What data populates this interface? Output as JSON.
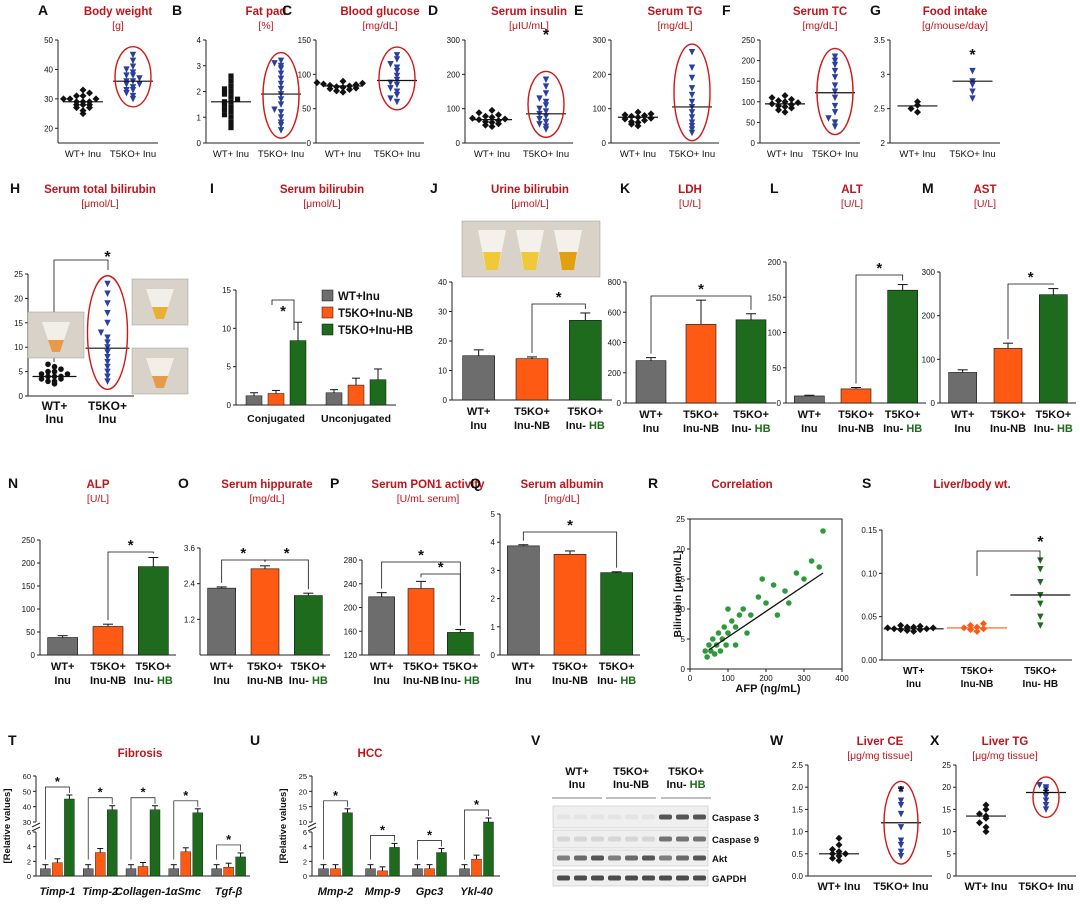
{
  "colors": {
    "title": "#c0141b",
    "gray": "#6d6d6d",
    "orange": "#ff5a14",
    "green": "#1e6b1e",
    "blue": "#2a3f9f",
    "marker": "#1a1a1a",
    "ring": "#d01818",
    "photo": "#d8d2c8",
    "tube": "#e0b860"
  },
  "chart_data": [
    {
      "id": "A",
      "type": "scatter",
      "title": "Body weight",
      "unit": "[g]",
      "ylim": [
        15,
        50
      ],
      "yticks": [
        20,
        30,
        40,
        50
      ],
      "categories": [
        "WT+ Inu",
        "T5KO+ Inu"
      ],
      "groups": [
        {
          "values": [
            25,
            26,
            27,
            27,
            28,
            28,
            28,
            29,
            29,
            29,
            30,
            30,
            30,
            31,
            31,
            32,
            33
          ],
          "mean": 29
        },
        {
          "values": [
            30,
            31,
            32,
            33,
            33,
            34,
            35,
            35,
            36,
            36,
            37,
            38,
            38,
            39,
            40,
            41,
            43,
            45
          ],
          "mean": 36
        }
      ],
      "star": false,
      "ring": 1
    },
    {
      "id": "B",
      "type": "scatter",
      "title": "Fat pad",
      "unit": "[%]",
      "ylim": [
        0,
        4
      ],
      "yticks": [
        0,
        1,
        2,
        3,
        4
      ],
      "categories": [
        "WT+ Inu",
        "T5KO+ Inu"
      ],
      "groups": [
        {
          "values": [
            0.6,
            0.8,
            1.0,
            1.1,
            1.2,
            1.3,
            1.4,
            1.5,
            1.6,
            1.6,
            1.7,
            1.8,
            1.9,
            2.0,
            2.1,
            2.2,
            2.4,
            2.6
          ],
          "mean": 1.6
        },
        {
          "values": [
            0.5,
            0.7,
            0.8,
            1.0,
            1.2,
            1.3,
            1.5,
            1.7,
            1.9,
            2.1,
            2.3,
            2.5,
            2.7,
            2.9,
            3.0,
            3.1,
            3.2
          ],
          "mean": 1.9
        }
      ],
      "star": false,
      "ring": 1
    },
    {
      "id": "C",
      "type": "scatter",
      "title": "Blood glucose",
      "unit": "[mg/dL]",
      "ylim": [
        0,
        150
      ],
      "yticks": [
        0,
        50,
        100,
        150
      ],
      "categories": [
        "WT+ Inu",
        "T5KO+ Inu"
      ],
      "groups": [
        {
          "values": [
            74,
            76,
            78,
            79,
            80,
            81,
            82,
            83,
            84,
            85,
            86,
            87,
            88,
            90
          ],
          "mean": 83
        },
        {
          "values": [
            60,
            65,
            70,
            75,
            80,
            85,
            88,
            92,
            98,
            105,
            110,
            115,
            122,
            128
          ],
          "mean": 91
        }
      ],
      "star": false,
      "ring": 1
    },
    {
      "id": "D",
      "type": "scatter",
      "title": "Serum insulin",
      "unit": "[μIU/mL]",
      "ylim": [
        0,
        300
      ],
      "yticks": [
        0,
        100,
        200,
        300
      ],
      "categories": [
        "WT+ Inu",
        "T5KO+ Inu"
      ],
      "groups": [
        {
          "values": [
            48,
            52,
            56,
            60,
            62,
            65,
            68,
            70,
            72,
            75,
            78,
            82,
            88,
            95
          ],
          "mean": 68
        },
        {
          "values": [
            40,
            48,
            55,
            62,
            70,
            78,
            85,
            92,
            100,
            110,
            120,
            130,
            145,
            165,
            185
          ],
          "mean": 85
        }
      ],
      "star": true,
      "ring": 1
    },
    {
      "id": "E",
      "type": "scatter",
      "title": "Serum TG",
      "unit": "[mg/dL]",
      "ylim": [
        0,
        300
      ],
      "yticks": [
        0,
        100,
        200,
        300
      ],
      "categories": [
        "WT+ Inu",
        "T5KO+ Inu"
      ],
      "groups": [
        {
          "values": [
            50,
            55,
            60,
            62,
            66,
            70,
            72,
            75,
            78,
            80,
            82,
            85,
            90
          ],
          "mean": 75
        },
        {
          "values": [
            30,
            40,
            50,
            60,
            75,
            90,
            105,
            120,
            140,
            160,
            190,
            220,
            265
          ],
          "mean": 105
        }
      ],
      "star": false,
      "ring": 1
    },
    {
      "id": "F",
      "type": "scatter",
      "title": "Serum TC",
      "unit": "[mg/dL]",
      "ylim": [
        0,
        250
      ],
      "yticks": [
        0,
        50,
        100,
        150,
        200,
        250
      ],
      "categories": [
        "WT+ Inu",
        "T5KO+ Inu"
      ],
      "groups": [
        {
          "values": [
            75,
            80,
            85,
            88,
            90,
            93,
            95,
            98,
            100,
            103,
            106,
            110,
            115
          ],
          "mean": 95
        },
        {
          "values": [
            40,
            50,
            60,
            75,
            90,
            110,
            125,
            140,
            160,
            175,
            190,
            200,
            210
          ],
          "mean": 122
        }
      ],
      "star": false,
      "ring": 1
    },
    {
      "id": "G",
      "type": "scatter",
      "title": "Food intake",
      "unit": "[g/mouse/day]",
      "ylim": [
        2.0,
        3.5
      ],
      "yticks": [
        2.0,
        2.5,
        3.0,
        3.5
      ],
      "categories": [
        "WT+ Inu",
        "T5KO+ Inu"
      ],
      "groups": [
        {
          "values": [
            2.45,
            2.5,
            2.55,
            2.6
          ],
          "mean": 2.54
        },
        {
          "values": [
            2.65,
            2.75,
            2.85,
            2.9,
            3.05
          ],
          "mean": 2.9
        }
      ],
      "star": true,
      "ring": -1
    },
    {
      "id": "H",
      "type": "scatter",
      "title": "Serum total bilirubin",
      "unit": "[μmol/L]",
      "ylim": [
        0,
        25
      ],
      "yticks": [
        0,
        5,
        10,
        15,
        20,
        25
      ],
      "categories": [
        "WT+\nInu",
        "T5KO+\nInu"
      ],
      "groups": [
        {
          "values": [
            2.5,
            3,
            3,
            3.5,
            3.5,
            4,
            4,
            4,
            4.5,
            4.5,
            5,
            5,
            5.5,
            6,
            6.5
          ],
          "mean": 4
        },
        {
          "values": [
            3,
            4,
            5,
            6,
            7,
            8,
            9,
            10,
            11,
            12,
            13,
            15,
            17,
            19,
            21,
            23
          ],
          "mean": 9.8
        }
      ],
      "star": true,
      "ring": 1
    },
    {
      "id": "I",
      "type": "bar",
      "title": "Serum bilirubin",
      "unit": "[μmol/L]",
      "ylim": [
        0,
        15
      ],
      "yticks": [
        0,
        5,
        10,
        15
      ],
      "categories": [
        "Conjugated",
        "Unconjugated"
      ],
      "series": [
        {
          "name": "WT+Inu",
          "values": [
            1.2,
            1.6
          ],
          "errors": [
            0.4,
            0.4
          ]
        },
        {
          "name": "T5KO+Inu-NB",
          "values": [
            1.5,
            2.6
          ],
          "errors": [
            0.4,
            0.9
          ]
        },
        {
          "name": "T5KO+Inu-HB",
          "values": [
            8.4,
            3.3
          ],
          "errors": [
            2.4,
            1.4
          ]
        }
      ],
      "legend": [
        "WT+Inu",
        "T5KO+Inu-NB",
        "T5KO+Inu-HB"
      ]
    },
    {
      "id": "J",
      "type": "bar",
      "title": "Urine  bilirubin",
      "unit": "[μmol/L]",
      "ylim": [
        0,
        40
      ],
      "yticks": [
        0,
        10,
        20,
        30,
        40
      ],
      "categories": [
        "WT+\nInu",
        "T5KO+\nInu-NB",
        "T5KO+\nInu- HB"
      ],
      "values": [
        15,
        14,
        27
      ],
      "errors": [
        2,
        0.6,
        2.5
      ]
    },
    {
      "id": "K",
      "type": "bar",
      "title": "LDH",
      "unit": "[U/L]",
      "ylim": [
        0,
        800
      ],
      "yticks": [
        0,
        200,
        400,
        600,
        800
      ],
      "categories": [
        "WT+\nInu",
        "T5KO+\nInu-NB",
        "T5KO+\nInu- HB"
      ],
      "values": [
        280,
        520,
        550
      ],
      "errors": [
        20,
        160,
        40
      ]
    },
    {
      "id": "L",
      "type": "bar",
      "title": "ALT",
      "unit": "[U/L]",
      "ylim": [
        0,
        200
      ],
      "yticks": [
        0,
        50,
        100,
        150,
        200
      ],
      "categories": [
        "WT+\nInu",
        "T5KO+\nInu-NB",
        "T5KO+\nInu- HB"
      ],
      "values": [
        10,
        20,
        160
      ],
      "errors": [
        1,
        2,
        8
      ]
    },
    {
      "id": "M",
      "type": "bar",
      "title": "AST",
      "unit": "[U/L]",
      "ylim": [
        0,
        300
      ],
      "yticks": [
        0,
        100,
        200,
        300
      ],
      "categories": [
        "WT+\nInu",
        "T5KO+\nInu-NB",
        "T5KO+\nInu- HB"
      ],
      "values": [
        70,
        125,
        248
      ],
      "errors": [
        6,
        12,
        14
      ]
    },
    {
      "id": "N",
      "type": "bar",
      "title": "ALP",
      "unit": "[U/L]",
      "ylim": [
        0,
        250
      ],
      "yticks": [
        0,
        50,
        100,
        150,
        200,
        250
      ],
      "categories": [
        "WT+\nInu",
        "T5KO+\nInu-NB",
        "T5KO+\nInu- HB"
      ],
      "values": [
        38,
        62,
        192
      ],
      "errors": [
        4,
        5,
        20
      ]
    },
    {
      "id": "O",
      "type": "bar",
      "title": "Serum hippurate",
      "unit": "[mg/dL]",
      "ylim": [
        0,
        3.6
      ],
      "yticks": [
        1.2,
        2.4,
        3.6
      ],
      "categories": [
        "WT+\nInu",
        "T5KO+\nInu-NB",
        "T5KO+\nInu- HB"
      ],
      "values": [
        2.25,
        2.9,
        2.0
      ],
      "errors": [
        0.04,
        0.1,
        0.08
      ]
    },
    {
      "id": "P",
      "type": "bar",
      "title": "Serum PON1 activity",
      "unit": "[U/mL serum]",
      "ylim": [
        120,
        280
      ],
      "yticks": [
        120,
        160,
        200,
        240,
        280
      ],
      "categories": [
        "WT+\nInu",
        "T5KO+\nInu-NB",
        "T5KO+\nInu- HB"
      ],
      "values": [
        218,
        232,
        158
      ],
      "errors": [
        7,
        12,
        5
      ]
    },
    {
      "id": "Q",
      "type": "bar",
      "title": "Serum albumin",
      "unit": "[mg/dL]",
      "ylim": [
        0,
        5
      ],
      "yticks": [
        0,
        1,
        2,
        3,
        4,
        5
      ],
      "categories": [
        "WT+\nInu",
        "T5KO+\nInu-NB",
        "T5KO+\nInu- HB"
      ],
      "values": [
        3.87,
        3.57,
        2.92
      ],
      "errors": [
        0.04,
        0.12,
        0.03
      ]
    },
    {
      "id": "R",
      "type": "scatter",
      "title": "Correlation",
      "xlabel": "AFP (ng/mL)",
      "ylabel": "Bilirubin [μmol/L]",
      "xlim": [
        0,
        400
      ],
      "ylim": [
        0,
        25
      ],
      "xticks": [
        0,
        100,
        200,
        300,
        400
      ],
      "yticks": [
        0,
        5,
        10,
        15,
        20,
        25
      ],
      "points": [
        [
          40,
          3
        ],
        [
          45,
          2
        ],
        [
          50,
          4
        ],
        [
          55,
          3
        ],
        [
          60,
          5
        ],
        [
          65,
          2.5
        ],
        [
          70,
          4
        ],
        [
          75,
          6
        ],
        [
          80,
          3
        ],
        [
          85,
          5
        ],
        [
          90,
          7
        ],
        [
          95,
          4
        ],
        [
          100,
          6
        ],
        [
          110,
          8
        ],
        [
          120,
          7
        ],
        [
          130,
          9
        ],
        [
          140,
          10
        ],
        [
          160,
          9
        ],
        [
          180,
          12
        ],
        [
          200,
          11
        ],
        [
          220,
          14
        ],
        [
          250,
          13
        ],
        [
          280,
          16
        ],
        [
          300,
          15
        ],
        [
          320,
          18
        ],
        [
          350,
          23
        ],
        [
          340,
          17
        ],
        [
          230,
          9
        ],
        [
          150,
          6
        ],
        [
          260,
          11
        ],
        [
          190,
          15
        ],
        [
          120,
          4
        ],
        [
          100,
          10
        ]
      ],
      "fit": [
        [
          50,
          3.2
        ],
        [
          350,
          16
        ]
      ]
    },
    {
      "id": "S",
      "type": "scatter",
      "title": "Liver/body wt.",
      "ylim": [
        0,
        0.15
      ],
      "yticks": [
        0,
        0.05,
        0.1,
        0.15
      ],
      "ytick_labels": [
        "0.00",
        "0.05",
        "0.10",
        "0.15"
      ],
      "categories": [
        "WT+\nInu",
        "T5KO+\nInu-NB",
        "T5KO+\nInu- HB"
      ],
      "groups": [
        {
          "values": [
            0.033,
            0.034,
            0.035,
            0.035,
            0.036,
            0.036,
            0.037,
            0.037,
            0.038,
            0.038,
            0.039,
            0.04
          ],
          "mean": 0.036
        },
        {
          "values": [
            0.033,
            0.035,
            0.036,
            0.037,
            0.038,
            0.04,
            0.042
          ],
          "mean": 0.037
        },
        {
          "values": [
            0.04,
            0.05,
            0.065,
            0.075,
            0.09,
            0.105,
            0.115
          ],
          "mean": 0.075
        }
      ],
      "star": true,
      "ring": -1
    },
    {
      "id": "T",
      "type": "bar",
      "title": "Fibrosis",
      "ylabel": "[Relative values]",
      "yticks_lower": [
        "0",
        "2",
        "4",
        "6"
      ],
      "yticks_upper": [
        "30",
        "40",
        "50",
        "60"
      ],
      "categories": [
        "Timp-1",
        "Timp-2",
        "Collagen-1",
        "αSmc",
        "Tgf-β"
      ],
      "series": [
        {
          "name": "WT+Inu",
          "values": [
            1,
            1,
            1,
            1,
            1
          ]
        },
        {
          "name": "T5KO+Inu-NB",
          "values": [
            1.8,
            3.2,
            1.3,
            3.3,
            1.2
          ]
        },
        {
          "name": "T5KO+Inu-HB",
          "values": [
            45,
            38,
            38,
            36,
            2.6
          ]
        }
      ]
    },
    {
      "id": "U",
      "type": "bar",
      "title": "HCC",
      "ylabel": "[Relative values]",
      "yticks_lower": [
        "0",
        "2",
        "4",
        "6"
      ],
      "yticks_upper": [
        "10",
        "15",
        "20",
        "25"
      ],
      "categories": [
        "Mmp-2",
        "Mmp-9",
        "Gpc3",
        "Ykl-40"
      ],
      "series": [
        {
          "name": "WT+Inu",
          "values": [
            1,
            1,
            1,
            1
          ]
        },
        {
          "name": "T5KO+Inu-NB",
          "values": [
            1,
            0.7,
            1,
            2.3
          ]
        },
        {
          "name": "T5KO+Inu-HB",
          "values": [
            13,
            3.9,
            3.2,
            10
          ]
        }
      ]
    },
    {
      "id": "W",
      "type": "scatter",
      "title": "Liver CE",
      "unit": "[μg/mg tissue]",
      "ylim": [
        0,
        2.5
      ],
      "yticks": [
        0.0,
        0.5,
        1.0,
        1.5,
        2.0,
        2.5
      ],
      "ytick_labels": [
        "0.0",
        "0.5",
        "1.0",
        "1.5",
        "2.0",
        "2.5"
      ],
      "categories": [
        "WT+ Inu",
        "T5KO+ Inu"
      ],
      "groups": [
        {
          "values": [
            0.35,
            0.4,
            0.45,
            0.5,
            0.5,
            0.55,
            0.6,
            0.7,
            0.85
          ],
          "mean": 0.5
        },
        {
          "values": [
            0.45,
            0.55,
            0.7,
            0.8,
            1.1,
            1.4,
            1.6,
            1.7,
            1.95
          ],
          "mean": 1.2
        }
      ],
      "star": true,
      "ring": 1
    },
    {
      "id": "X",
      "type": "scatter",
      "title": "Liver TG",
      "unit": "[μg/mg tissue]",
      "ylim": [
        0,
        25
      ],
      "yticks": [
        0,
        5,
        10,
        15,
        20,
        25
      ],
      "categories": [
        "WT+ Inu",
        "T5KO+ Inu"
      ],
      "groups": [
        {
          "values": [
            10,
            11,
            12,
            13,
            13.5,
            14,
            15,
            16
          ],
          "mean": 13.5
        },
        {
          "values": [
            15,
            16,
            17,
            18,
            19.5,
            20,
            20.5
          ],
          "mean": 18.8
        }
      ],
      "star": true,
      "ring": 1
    }
  ],
  "western_blot": {
    "panel_id": "V",
    "groups": [
      "WT+\nInu",
      "T5KO+\nInu-NB",
      "T5KO+\nInu- HB"
    ],
    "bands": [
      "Caspase 3",
      "Caspase 9",
      "Akt",
      "GAPDH"
    ]
  }
}
